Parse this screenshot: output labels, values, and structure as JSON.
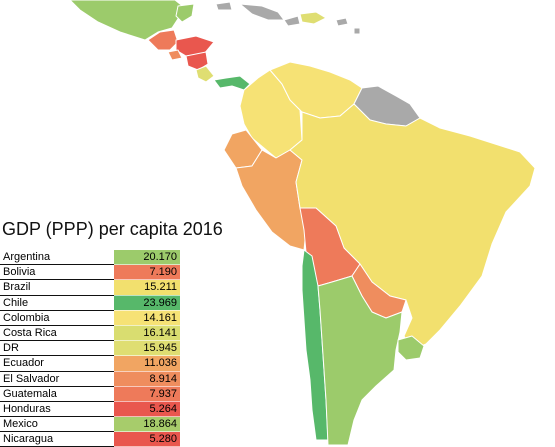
{
  "title": "GDP (PPP) per capita 2016",
  "colors": {
    "high_green": "#57b86a",
    "light_green": "#9ccb6b",
    "yellow": "#f2e06e",
    "orange": "#f1a562",
    "red_orange": "#ee7a5a",
    "red": "#e9574e",
    "gray": "#a9a9a9"
  },
  "rows": [
    {
      "country": "Argentina",
      "value": "20.170",
      "color": "#9ccb6b"
    },
    {
      "country": "Bolivia",
      "value": "7.190",
      "color": "#ee7a5a"
    },
    {
      "country": "Brazil",
      "value": "15.211",
      "color": "#f2e06e"
    },
    {
      "country": "Chile",
      "value": "23.969",
      "color": "#57b86a"
    },
    {
      "country": "Colombia",
      "value": "14.161",
      "color": "#f6e275"
    },
    {
      "country": "Costa Rica",
      "value": "16.141",
      "color": "#d9dd70"
    },
    {
      "country": "DR",
      "value": "15.945",
      "color": "#dfde72"
    },
    {
      "country": "Ecuador",
      "value": "11.036",
      "color": "#f1a562"
    },
    {
      "country": "El Salvador",
      "value": "8.914",
      "color": "#ef8d5e"
    },
    {
      "country": "Guatemala",
      "value": "7.937",
      "color": "#ee7a5a"
    },
    {
      "country": "Honduras",
      "value": "5.264",
      "color": "#e9574e"
    },
    {
      "country": "Mexico",
      "value": "18.864",
      "color": "#a7cc6b"
    },
    {
      "country": "Nicaragua",
      "value": "5.280",
      "color": "#e9574e"
    }
  ],
  "regions": [
    {
      "name": "Mexico",
      "color": "#9ccb6b"
    },
    {
      "name": "Guatemala",
      "color": "#ee7a5a"
    },
    {
      "name": "Honduras",
      "color": "#e9574e"
    },
    {
      "name": "Nicaragua",
      "color": "#e9574e"
    },
    {
      "name": "El Salvador",
      "color": "#ef8d5e"
    },
    {
      "name": "Costa Rica",
      "color": "#dfde72"
    },
    {
      "name": "Panama",
      "color": "#57b86a"
    },
    {
      "name": "Colombia",
      "color": "#f6e275"
    },
    {
      "name": "Venezuela",
      "color": "#f6e275"
    },
    {
      "name": "Guianas",
      "color": "#a9a9a9"
    },
    {
      "name": "Ecuador",
      "color": "#f1a562"
    },
    {
      "name": "Peru",
      "color": "#f1a562"
    },
    {
      "name": "Brazil",
      "color": "#f2e06e"
    },
    {
      "name": "Bolivia",
      "color": "#ee7a5a"
    },
    {
      "name": "Paraguay",
      "color": "#ef8d5e"
    },
    {
      "name": "Chile",
      "color": "#57b86a"
    },
    {
      "name": "Argentina",
      "color": "#9ccb6b"
    },
    {
      "name": "Uruguay",
      "color": "#9ccb6b"
    },
    {
      "name": "Cuba",
      "color": "#a9a9a9"
    },
    {
      "name": "Dominican Republic",
      "color": "#dfde72"
    },
    {
      "name": "Caribbean islands",
      "color": "#a9a9a9"
    }
  ]
}
